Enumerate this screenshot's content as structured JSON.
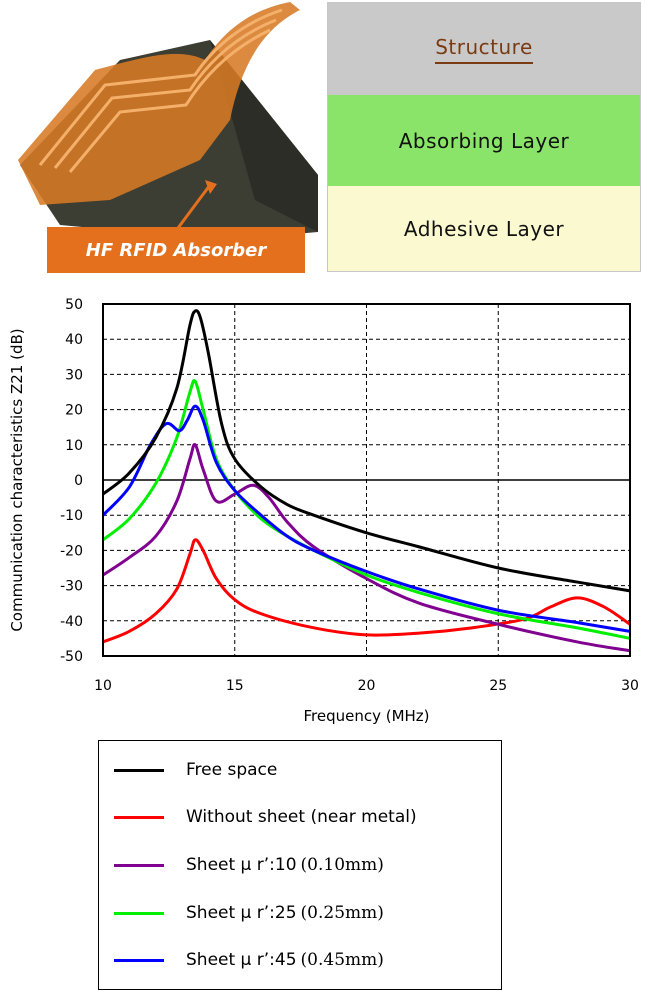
{
  "photo": {
    "label": "HF RFID Absorber"
  },
  "structure": {
    "title": "Structure",
    "layers": [
      "Absorbing Layer",
      "Adhesive Layer"
    ],
    "colors": {
      "title_bg": "#c9c9c9",
      "absorbing": "#8ae46a",
      "adhesive": "#fbf9cf"
    }
  },
  "chart_data": {
    "type": "line",
    "xlabel": "Frequency (MHz)",
    "ylabel": "Communication characteristics Z21 (dB)",
    "xlim": [
      10,
      30
    ],
    "ylim": [
      -50,
      50
    ],
    "xticks": [
      "10",
      "15",
      "20",
      "25",
      "30"
    ],
    "yticks": [
      "50",
      "40",
      "30",
      "20",
      "10",
      "0",
      "-10",
      "-20",
      "-30",
      "-40",
      "-50"
    ],
    "grid": "dashed",
    "series": [
      {
        "name": "Free space",
        "color": "#000000",
        "points": [
          [
            10,
            -4
          ],
          [
            11,
            2
          ],
          [
            12,
            12
          ],
          [
            12.8,
            26
          ],
          [
            13.3,
            44
          ],
          [
            13.5,
            48
          ],
          [
            13.7,
            46
          ],
          [
            14,
            36
          ],
          [
            14.5,
            16
          ],
          [
            15,
            6
          ],
          [
            16,
            -2
          ],
          [
            17,
            -7
          ],
          [
            18,
            -10
          ],
          [
            20,
            -15
          ],
          [
            22,
            -19
          ],
          [
            25,
            -25
          ],
          [
            28,
            -29
          ],
          [
            30,
            -31.5
          ]
        ]
      },
      {
        "name": "Without sheet (near metal)",
        "color": "#ff0000",
        "points": [
          [
            10,
            -46
          ],
          [
            11,
            -43
          ],
          [
            12,
            -38
          ],
          [
            12.8,
            -31
          ],
          [
            13.3,
            -21
          ],
          [
            13.5,
            -17
          ],
          [
            13.8,
            -20
          ],
          [
            14.3,
            -28
          ],
          [
            15,
            -34
          ],
          [
            16,
            -38
          ],
          [
            18,
            -42
          ],
          [
            20,
            -44
          ],
          [
            22,
            -43.5
          ],
          [
            24,
            -42
          ],
          [
            26,
            -39.5
          ],
          [
            27,
            -36
          ],
          [
            28,
            -33.5
          ],
          [
            29,
            -36
          ],
          [
            30,
            -41
          ]
        ]
      },
      {
        "name": "Sheet μ r’:10",
        "color": "#800090",
        "points": [
          [
            10,
            -27
          ],
          [
            11,
            -22
          ],
          [
            12,
            -16
          ],
          [
            12.8,
            -6
          ],
          [
            13.3,
            6
          ],
          [
            13.5,
            10
          ],
          [
            13.8,
            3
          ],
          [
            14.3,
            -6
          ],
          [
            15,
            -4
          ],
          [
            15.7,
            -1.5
          ],
          [
            16.3,
            -5
          ],
          [
            17,
            -12
          ],
          [
            18,
            -19
          ],
          [
            20,
            -28
          ],
          [
            22,
            -35
          ],
          [
            25,
            -41
          ],
          [
            28,
            -46
          ],
          [
            30,
            -48.5
          ]
        ]
      },
      {
        "name": "Sheet μ r’:25",
        "color": "#00ee00",
        "points": [
          [
            10,
            -17
          ],
          [
            11,
            -11
          ],
          [
            12,
            -1
          ],
          [
            12.8,
            12
          ],
          [
            13.3,
            25
          ],
          [
            13.5,
            28
          ],
          [
            13.8,
            20
          ],
          [
            14.3,
            6
          ],
          [
            15,
            -3
          ],
          [
            16,
            -11
          ],
          [
            17,
            -16
          ],
          [
            18,
            -20
          ],
          [
            20,
            -27
          ],
          [
            22,
            -32
          ],
          [
            25,
            -38
          ],
          [
            28,
            -42
          ],
          [
            30,
            -45
          ]
        ]
      },
      {
        "name": "Sheet μ r’:45",
        "color": "#0000ff",
        "points": [
          [
            10,
            -10
          ],
          [
            11,
            -2
          ],
          [
            11.8,
            10
          ],
          [
            12.4,
            16
          ],
          [
            12.9,
            14
          ],
          [
            13.2,
            17
          ],
          [
            13.5,
            21
          ],
          [
            13.8,
            17
          ],
          [
            14.3,
            5
          ],
          [
            15,
            -3
          ],
          [
            16,
            -10
          ],
          [
            17,
            -16
          ],
          [
            18,
            -20
          ],
          [
            20,
            -26
          ],
          [
            22,
            -31
          ],
          [
            25,
            -37
          ],
          [
            28,
            -40.5
          ],
          [
            30,
            -43
          ]
        ]
      }
    ]
  },
  "legend": {
    "items": [
      {
        "label": "Free space",
        "extra": "",
        "color": "#000000"
      },
      {
        "label": "Without sheet (near metal)",
        "extra": "",
        "color": "#ff0000"
      },
      {
        "label": "Sheet μ r’:10",
        "extra": "(0.10mm)",
        "color": "#800090"
      },
      {
        "label": "Sheet μ r’:25",
        "extra": "(0.25mm)",
        "color": "#00ee00"
      },
      {
        "label": "Sheet μ r’:45",
        "extra": "(0.45mm)",
        "color": "#0000ff"
      }
    ]
  }
}
